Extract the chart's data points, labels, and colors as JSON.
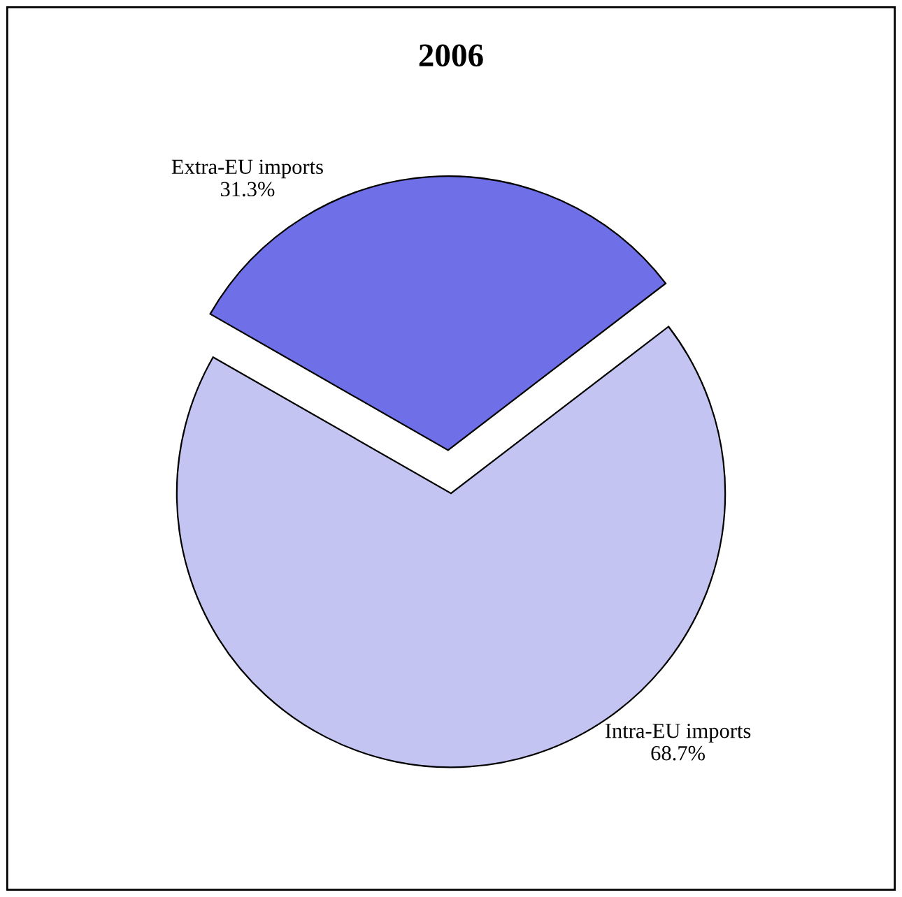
{
  "chart_data": {
    "type": "pie",
    "title": "2006",
    "categories": [
      "Extra-EU imports",
      "Intra-EU imports"
    ],
    "values": [
      31.3,
      68.7
    ],
    "colors": [
      "#6f6fe8",
      "#c4c4f2"
    ],
    "value_labels": [
      "31.3%",
      "68.7%"
    ]
  }
}
